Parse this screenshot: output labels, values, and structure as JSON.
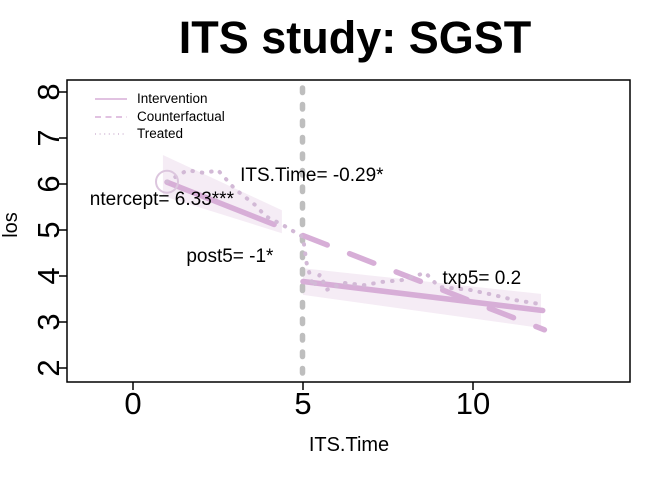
{
  "colors": {
    "line": "#D7AED7",
    "treated": "#D2B9D6",
    "band": "#F5ECF5",
    "marker": "#DCC6DE",
    "vline": "#BEBEBE",
    "axis": "#000000",
    "text": "#000000"
  },
  "chart_data": {
    "type": "line",
    "title": "ITS study: SGST",
    "xlabel": "ITS.Time",
    "ylabel": "los",
    "xlim": [
      -1.9,
      14.6
    ],
    "ylim": [
      1.7,
      8.26
    ],
    "x_ticks": [
      0,
      5,
      10
    ],
    "y_ticks": [
      2,
      3,
      4,
      5,
      6,
      7,
      8
    ],
    "grid": false,
    "legend_position": "top-left",
    "legend": [
      {
        "label": "Intervention",
        "style": "solid"
      },
      {
        "label": "Counterfactual",
        "style": "dashed"
      },
      {
        "label": "Treated",
        "style": "dotted"
      }
    ],
    "intervention_line_x": 5,
    "marker": {
      "x": 1,
      "y": 6.05,
      "shape": "open-circle"
    },
    "series": [
      {
        "id": "intervention-pre",
        "name": "Intervention (pre)",
        "style": "solid",
        "points": [
          [
            1,
            6.04
          ],
          [
            4.15,
            5.12
          ]
        ]
      },
      {
        "id": "intervention-post",
        "name": "Intervention (post)",
        "style": "solid",
        "points": [
          [
            5,
            3.88
          ],
          [
            12.05,
            3.25
          ]
        ]
      },
      {
        "id": "counterfactual",
        "name": "Counterfactual",
        "style": "dashed",
        "points": [
          [
            5,
            4.88
          ],
          [
            12.1,
            2.83
          ]
        ]
      },
      {
        "id": "treated",
        "name": "Treated",
        "style": "dotted",
        "points": [
          [
            1,
            6.05
          ],
          [
            1.6,
            6.3
          ],
          [
            2.1,
            6.24
          ],
          [
            2.5,
            6.3
          ],
          [
            3,
            5.89
          ],
          [
            3.6,
            5.54
          ],
          [
            3.9,
            5.3
          ],
          [
            4.4,
            5.11
          ],
          [
            5,
            4.85
          ],
          [
            5.1,
            4.3
          ],
          [
            5.3,
            3.76
          ],
          [
            5.5,
            4.04
          ],
          [
            5.7,
            3.7
          ],
          [
            6.2,
            3.85
          ],
          [
            6.8,
            3.8
          ],
          [
            7.3,
            3.87
          ],
          [
            7.9,
            3.91
          ],
          [
            8.6,
            4.07
          ],
          [
            9,
            3.76
          ],
          [
            9.9,
            3.7
          ],
          [
            10.6,
            3.59
          ],
          [
            11.2,
            3.48
          ],
          [
            11.8,
            3.41
          ],
          [
            12.1,
            3.37
          ]
        ]
      }
    ],
    "bands": [
      {
        "id": "pre-ci",
        "points": [
          [
            0.88,
            6.63
          ],
          [
            4.38,
            5.43
          ],
          [
            4.38,
            4.93
          ],
          [
            0.88,
            5.74
          ]
        ]
      },
      {
        "id": "post-ci",
        "points": [
          [
            5,
            4.17
          ],
          [
            12,
            3.61
          ],
          [
            12,
            2.87
          ],
          [
            5,
            3.59
          ]
        ]
      }
    ],
    "annotations": [
      {
        "id": "intercept",
        "text": "ntercept= 6.33***",
        "x": 0.85,
        "y": 5.65
      },
      {
        "id": "its-time-slope",
        "text": "ITS.Time= -0.29*",
        "x": 5.26,
        "y": 6.17
      },
      {
        "id": "post5",
        "text": "post5= -1*",
        "x": 2.85,
        "y": 4.41
      },
      {
        "id": "txp5",
        "text": "txp5= 0.2",
        "x": 10.26,
        "y": 3.93
      }
    ]
  }
}
